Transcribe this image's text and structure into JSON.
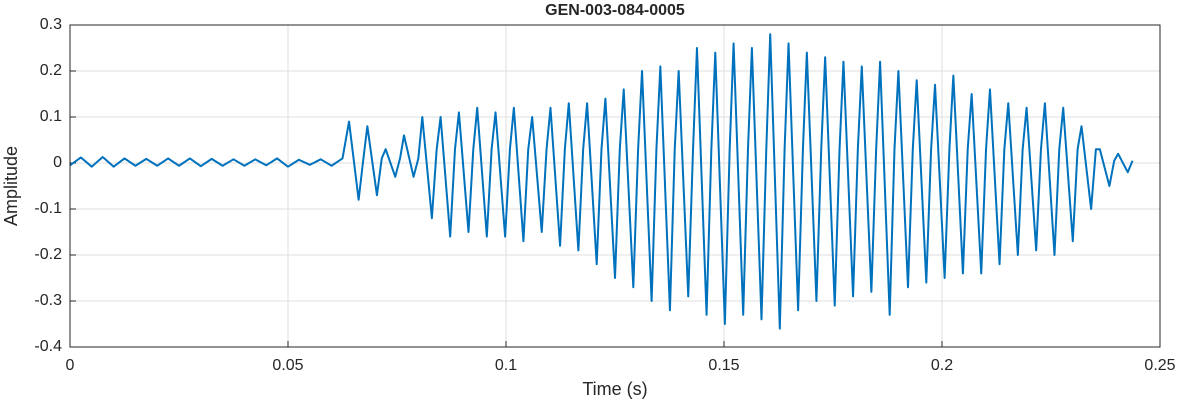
{
  "chart_data": {
    "type": "line",
    "title": "GEN-003-084-0005",
    "xlabel": "Time (s)",
    "ylabel": "Amplitude",
    "color": "#0072bd",
    "grid": true,
    "xlim": [
      0,
      0.25
    ],
    "xticks": [
      0,
      0.05,
      0.1,
      0.15,
      0.2,
      0.25
    ],
    "ylim": [
      -0.4,
      0.3
    ],
    "yticks": [
      0.3,
      0.2,
      0.1,
      0,
      -0.1,
      -0.2,
      -0.3,
      -0.4
    ],
    "x": [
      0,
      0.0025,
      0.005,
      0.0075,
      0.01,
      0.0125,
      0.015,
      0.0175,
      0.02,
      0.0225,
      0.025,
      0.0275,
      0.03,
      0.0325,
      0.035,
      0.0375,
      0.04,
      0.0425,
      0.045,
      0.0475,
      0.05,
      0.0525,
      0.055,
      0.0575,
      0.06,
      0.0625,
      0.064,
      0.0662,
      0.0673,
      0.0682,
      0.0704,
      0.0715,
      0.0724,
      0.0746,
      0.0757,
      0.0766,
      0.0788,
      0.0799,
      0.0808,
      0.083,
      0.0841,
      0.085,
      0.0872,
      0.0883,
      0.0892,
      0.0914,
      0.0925,
      0.0934,
      0.0956,
      0.0967,
      0.0976,
      0.0998,
      0.1009,
      0.1018,
      0.104,
      0.1051,
      0.106,
      0.1082,
      0.1093,
      0.1102,
      0.1124,
      0.1135,
      0.1144,
      0.1166,
      0.1177,
      0.1186,
      0.1208,
      0.1219,
      0.1228,
      0.125,
      0.1261,
      0.127,
      0.1292,
      0.1303,
      0.1312,
      0.1334,
      0.1345,
      0.1354,
      0.1376,
      0.1387,
      0.1396,
      0.1418,
      0.1429,
      0.1438,
      0.146,
      0.1471,
      0.148,
      0.1502,
      0.1513,
      0.1522,
      0.1544,
      0.1555,
      0.1564,
      0.1586,
      0.1597,
      0.1606,
      0.1628,
      0.1639,
      0.1648,
      0.167,
      0.1681,
      0.169,
      0.1712,
      0.1723,
      0.1732,
      0.1754,
      0.1765,
      0.1774,
      0.1796,
      0.1807,
      0.1816,
      0.1838,
      0.1849,
      0.1858,
      0.188,
      0.1891,
      0.19,
      0.1922,
      0.1933,
      0.1942,
      0.1964,
      0.1975,
      0.1984,
      0.2006,
      0.2017,
      0.2026,
      0.2048,
      0.2059,
      0.2068,
      0.209,
      0.2101,
      0.211,
      0.2132,
      0.2143,
      0.2152,
      0.2174,
      0.2185,
      0.2194,
      0.2216,
      0.2227,
      0.2236,
      0.2258,
      0.2269,
      0.2278,
      0.23,
      0.2311,
      0.232,
      0.2342,
      0.2353,
      0.2362,
      0.2384,
      0.2395,
      0.2404,
      0.2426,
      0.2437
    ],
    "values": [
      -0.005,
      0.012,
      -0.008,
      0.013,
      -0.008,
      0.01,
      -0.006,
      0.009,
      -0.006,
      0.01,
      -0.006,
      0.01,
      -0.007,
      0.009,
      -0.006,
      0.008,
      -0.006,
      0.008,
      -0.005,
      0.01,
      -0.008,
      0.007,
      -0.004,
      0.008,
      -0.006,
      0.01,
      0.09,
      -0.08,
      0.01,
      0.08,
      -0.07,
      0.01,
      0.03,
      -0.03,
      0.01,
      0.06,
      -0.03,
      0.01,
      0.1,
      -0.12,
      0.03,
      0.1,
      -0.16,
      0.03,
      0.11,
      -0.15,
      0.03,
      0.12,
      -0.16,
      0.03,
      0.11,
      -0.16,
      0.03,
      0.12,
      -0.17,
      0.03,
      0.1,
      -0.15,
      0.03,
      0.12,
      -0.18,
      0.03,
      0.13,
      -0.19,
      0.03,
      0.13,
      -0.22,
      0.03,
      0.14,
      -0.25,
      0.03,
      0.16,
      -0.27,
      0.03,
      0.2,
      -0.3,
      0.03,
      0.21,
      -0.32,
      0.03,
      0.2,
      -0.29,
      0.03,
      0.25,
      -0.33,
      0.03,
      0.24,
      -0.35,
      0.03,
      0.26,
      -0.33,
      0.03,
      0.25,
      -0.34,
      0.03,
      0.28,
      -0.36,
      0.03,
      0.26,
      -0.32,
      0.03,
      0.24,
      -0.3,
      0.03,
      0.23,
      -0.31,
      0.03,
      0.22,
      -0.29,
      0.03,
      0.21,
      -0.28,
      0.03,
      0.22,
      -0.33,
      0.03,
      0.2,
      -0.27,
      0.03,
      0.18,
      -0.26,
      0.03,
      0.17,
      -0.25,
      0.03,
      0.19,
      -0.24,
      0.03,
      0.15,
      -0.24,
      0.03,
      0.16,
      -0.22,
      0.03,
      0.13,
      -0.2,
      0.03,
      0.12,
      -0.19,
      0.03,
      0.13,
      -0.2,
      0.03,
      0.12,
      -0.17,
      0.03,
      0.08,
      -0.1,
      0.03,
      0.03,
      -0.05,
      0.005,
      0.02,
      -0.02,
      0.005
    ]
  }
}
